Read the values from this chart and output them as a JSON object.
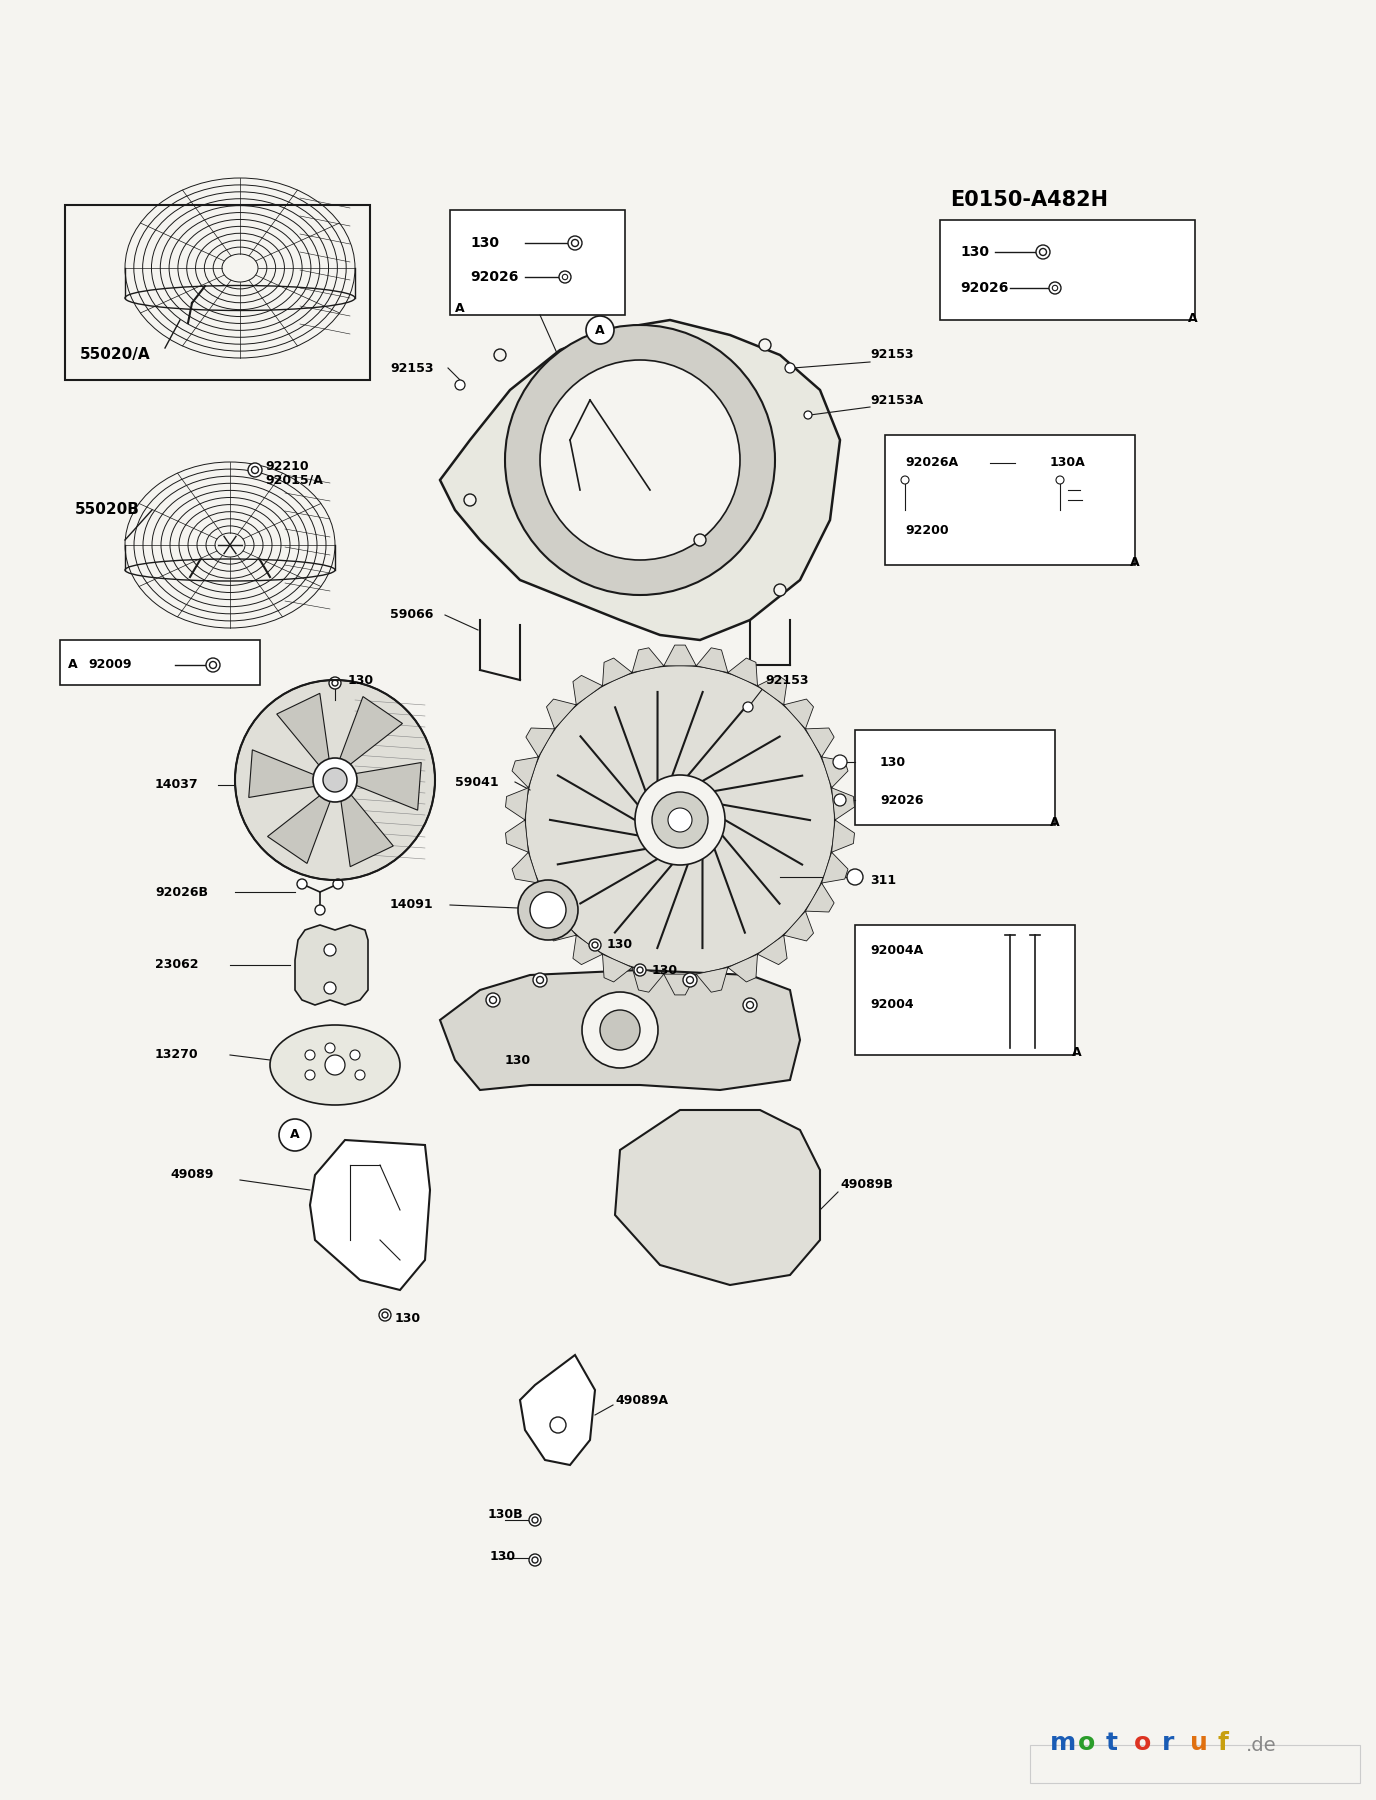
{
  "bg_color": "#f5f4f0",
  "line_color": "#1a1a1a",
  "title_code": "E0150-A482H",
  "watermark_chars": [
    "m",
    "o",
    "t",
    "o",
    "r",
    "u",
    "f"
  ],
  "watermark_colors": [
    "#1a5cb5",
    "#2a9d2a",
    "#1a5cb5",
    "#dd3322",
    "#1a5cb5",
    "#e07010",
    "#c8a010"
  ],
  "watermark_de_color": "#888888"
}
